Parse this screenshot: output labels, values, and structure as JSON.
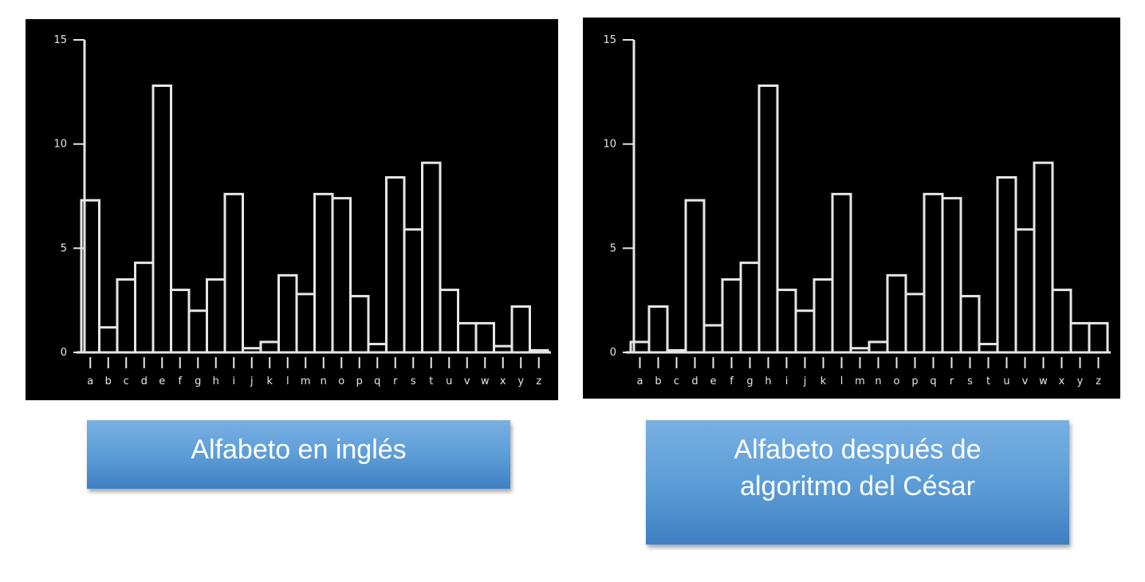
{
  "chart_data": [
    {
      "type": "bar",
      "title": "",
      "xlabel": "",
      "ylabel": "",
      "ylim": [
        0,
        15
      ],
      "y_ticks": [
        "0",
        "5",
        "10",
        "15"
      ],
      "grid": false,
      "categories": [
        "a",
        "b",
        "c",
        "d",
        "e",
        "f",
        "g",
        "h",
        "i",
        "j",
        "k",
        "l",
        "m",
        "n",
        "o",
        "p",
        "q",
        "r",
        "s",
        "t",
        "u",
        "v",
        "w",
        "x",
        "y",
        "z"
      ],
      "values": [
        7.3,
        1.2,
        3.5,
        4.3,
        12.8,
        3.0,
        2.0,
        3.5,
        7.6,
        0.2,
        0.5,
        3.7,
        2.8,
        7.6,
        7.4,
        2.7,
        0.4,
        8.4,
        5.9,
        9.1,
        3.0,
        1.4,
        1.4,
        0.3,
        2.2,
        0.1
      ]
    },
    {
      "type": "bar",
      "title": "",
      "xlabel": "",
      "ylabel": "",
      "ylim": [
        0,
        15
      ],
      "y_ticks": [
        "0",
        "5",
        "10",
        "15"
      ],
      "grid": false,
      "categories": [
        "a",
        "b",
        "c",
        "d",
        "e",
        "f",
        "g",
        "h",
        "i",
        "j",
        "k",
        "l",
        "m",
        "n",
        "o",
        "p",
        "q",
        "r",
        "s",
        "t",
        "u",
        "v",
        "w",
        "x",
        "y",
        "z"
      ],
      "values": [
        0.5,
        2.2,
        0.1,
        7.3,
        1.3,
        3.5,
        4.3,
        12.8,
        3.0,
        2.0,
        3.5,
        7.6,
        0.2,
        0.5,
        3.7,
        2.8,
        7.6,
        7.4,
        2.7,
        0.4,
        8.4,
        5.9,
        9.1,
        3.0,
        1.4,
        1.4
      ]
    }
  ],
  "captions": {
    "left": "Alfabeto en inglés",
    "right": "Alfabeto después de\nalgoritmo del César"
  },
  "colors": {
    "chart_background": "#000000",
    "chart_ink": "#e6e6e6",
    "caption_fill": "#5a9bd6",
    "caption_text": "#ffffff"
  }
}
